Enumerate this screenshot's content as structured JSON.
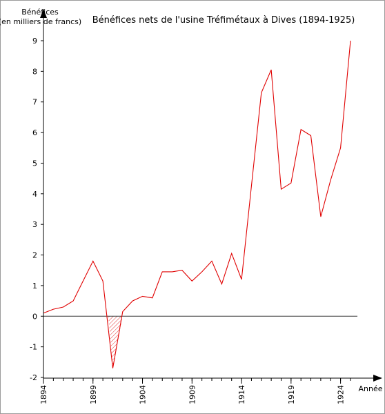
{
  "chart_data": {
    "type": "line",
    "title": "Bénéfices nets de l'usine Tréfimétaux à Dives (1894-1925)",
    "ylabel_line1": "Bénéfices",
    "ylabel_line2": "(en milliers de francs)",
    "xlabel": "Année",
    "xlim": [
      1894,
      1925.7
    ],
    "ylim": [
      -2,
      9
    ],
    "x_ticks": [
      1894,
      1899,
      1904,
      1909,
      1914,
      1919,
      1924
    ],
    "y_ticks": [
      -2,
      -1,
      0,
      1,
      2,
      3,
      4,
      5,
      6,
      7,
      8,
      9
    ],
    "grid": false,
    "series": [
      {
        "color": "#e00000",
        "x": [
          1894,
          1895,
          1896,
          1897,
          1898,
          1899,
          1900,
          1901,
          1902,
          1903,
          1904,
          1905,
          1906,
          1907,
          1908,
          1909,
          1910,
          1911,
          1912,
          1913,
          1914,
          1915,
          1916,
          1917,
          1918,
          1919,
          1920,
          1921,
          1922,
          1923,
          1924,
          1925
        ],
        "y": [
          0.1,
          0.23,
          0.3,
          0.5,
          1.15,
          1.8,
          1.15,
          -1.7,
          0.15,
          0.5,
          0.65,
          0.6,
          1.45,
          1.45,
          1.5,
          1.15,
          1.45,
          1.8,
          1.05,
          2.05,
          1.2,
          4.25,
          7.3,
          8.05,
          4.15,
          4.35,
          6.1,
          5.9,
          3.25,
          4.45,
          5.5,
          9.0
        ]
      }
    ],
    "loss_fill": {
      "from": 1900.55,
      "to": 1902.0,
      "pattern": "hatched",
      "color": "#e00000"
    }
  }
}
